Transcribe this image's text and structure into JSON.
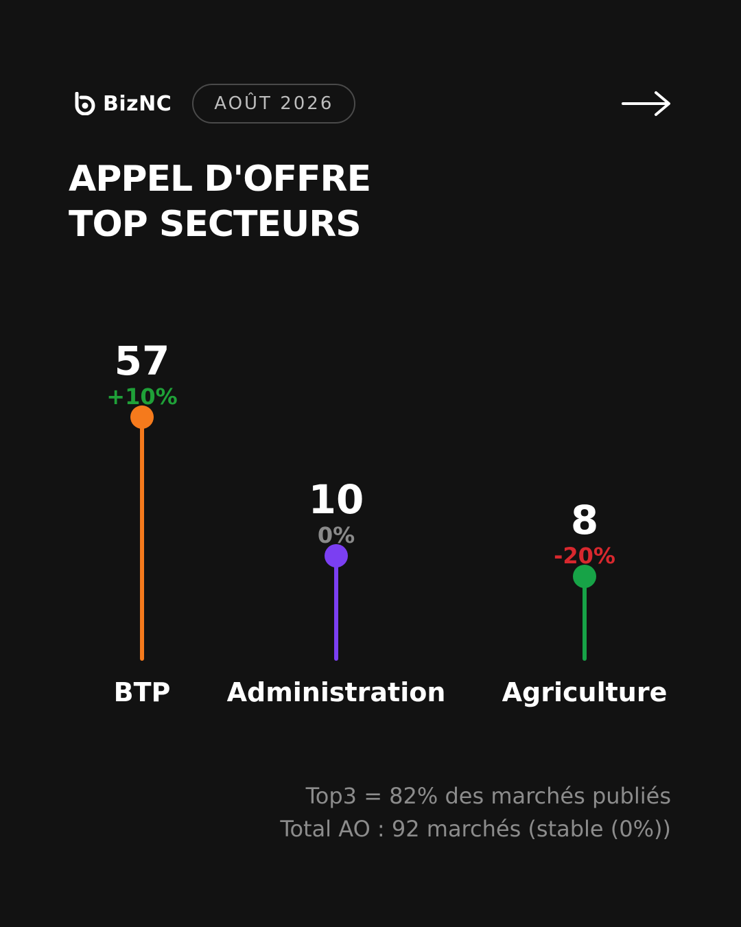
{
  "header": {
    "brand": "BizNC",
    "date": "AOÛT 2026",
    "logo_icon": "biznc-logo-icon",
    "next_icon": "arrow-right-icon"
  },
  "title": {
    "line1": "APPEL D'OFFRE",
    "line2": "TOP SECTEURS"
  },
  "chart_data": {
    "type": "lollipop",
    "categories": [
      "BTP",
      "Administration",
      "Agriculture"
    ],
    "values": [
      57,
      10,
      8
    ],
    "changes": [
      "+10%",
      "0%",
      "-20%"
    ],
    "change_colors": [
      "#1fa038",
      "#8a8a8a",
      "#d8282e"
    ],
    "colors": [
      "#f57a1c",
      "#7b3ff2",
      "#17a347"
    ]
  },
  "footer": {
    "line1": "Top3 = 82% des marchés publiés",
    "line2": "Total AO : 92 marchés (stable (0%))"
  }
}
